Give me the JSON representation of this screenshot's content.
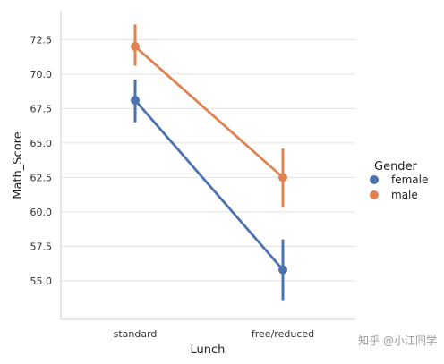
{
  "chart_data": {
    "type": "line",
    "subtype": "pointplot",
    "categories": [
      "standard",
      "free/reduced"
    ],
    "xlabel": "Lunch",
    "ylabel": "Math_Score",
    "ylim": [
      52.2,
      74.6
    ],
    "yticks": [
      55.0,
      57.5,
      60.0,
      62.5,
      65.0,
      67.5,
      70.0,
      72.5
    ],
    "ytick_labels": [
      "55.0",
      "57.5",
      "60.0",
      "62.5",
      "65.0",
      "67.5",
      "70.0",
      "72.5"
    ],
    "grid": "horizontal",
    "legend": {
      "title": "Gender",
      "placement": "right"
    },
    "series": [
      {
        "name": "female",
        "color": "#4c72b0",
        "values": [
          68.1,
          55.8
        ],
        "ci_low": [
          66.5,
          53.6
        ],
        "ci_high": [
          69.6,
          58.0
        ]
      },
      {
        "name": "male",
        "color": "#dd8452",
        "values": [
          72.0,
          62.5
        ],
        "ci_low": [
          70.6,
          60.3
        ],
        "ci_high": [
          73.6,
          64.6
        ]
      }
    ]
  },
  "watermark": "知乎 @小江同学"
}
